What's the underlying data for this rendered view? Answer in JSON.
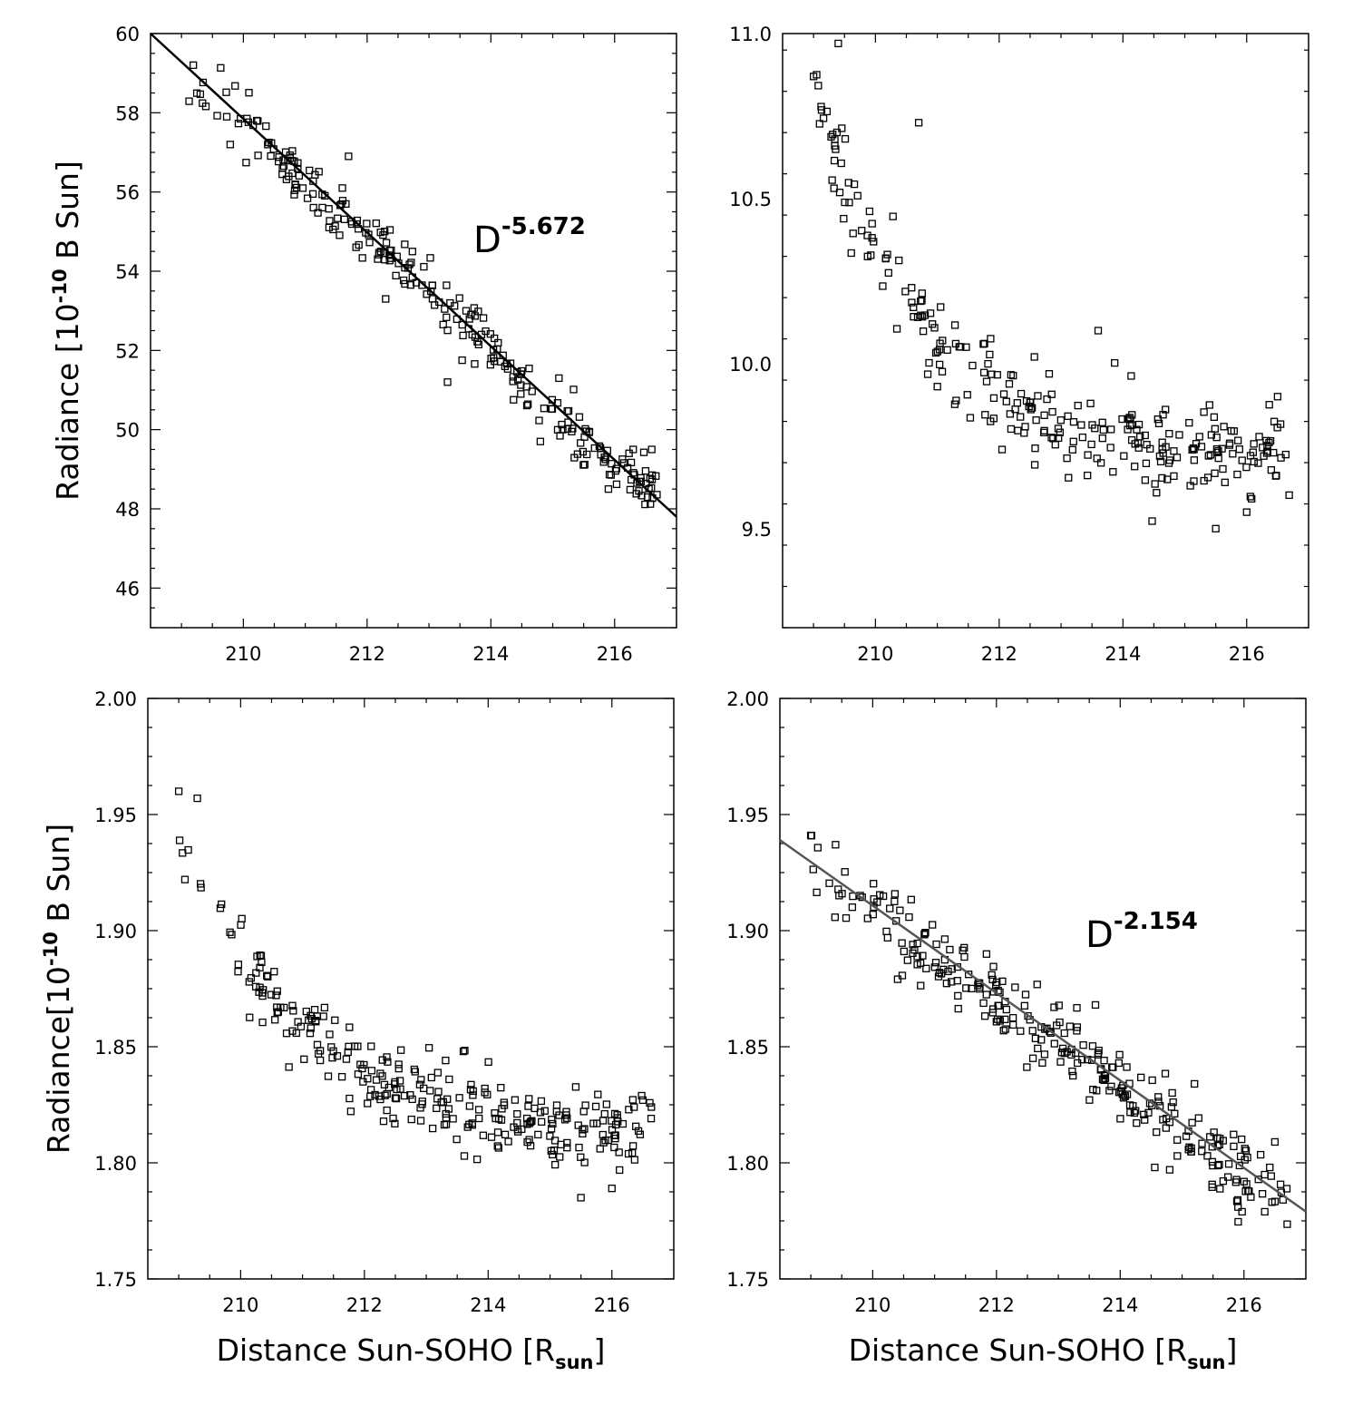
{
  "chart_data": [
    {
      "type": "scatter",
      "panel": "top-left",
      "xlim": [
        208.5,
        217
      ],
      "ylim": [
        45,
        60
      ],
      "xticks": [
        210,
        212,
        214,
        216
      ],
      "yticks": [
        46,
        48,
        50,
        52,
        54,
        56,
        58,
        60
      ],
      "ytick_labels": [
        "46",
        "48",
        "50",
        "52",
        "54",
        "56",
        "58",
        "60"
      ],
      "ylabel": {
        "before": "Radiance [10",
        "sup": "-10",
        "after": " B Sun]"
      },
      "xlabel": null,
      "fit": {
        "label": "D",
        "exponent": "-5.672",
        "x": [
          208.5,
          217
        ],
        "y": [
          60.0,
          47.8
        ],
        "color": "#000000"
      },
      "model": {
        "kind": "linear",
        "y0": 59.1,
        "slope": -1.42,
        "jitter": 0.35,
        "n": 260,
        "outliers": [
          [
            211.7,
            56.9
          ],
          [
            211.6,
            56.1
          ],
          [
            213.3,
            51.2
          ],
          [
            215.1,
            51.3
          ],
          [
            214.8,
            49.7
          ],
          [
            215.9,
            48.5
          ],
          [
            213.6,
            53.0
          ],
          [
            212.3,
            53.3
          ],
          [
            216.3,
            49.5
          ],
          [
            216.6,
            49.5
          ]
        ]
      }
    },
    {
      "type": "scatter",
      "panel": "top-right",
      "xlim": [
        208.5,
        217
      ],
      "ylim": [
        9.2,
        11.0
      ],
      "xticks": [
        210,
        212,
        214,
        216
      ],
      "yticks": [
        9.5,
        10.0,
        10.5,
        11.0
      ],
      "ytick_labels": [
        "9.5",
        "10.0",
        "10.5",
        "11.0"
      ],
      "ylabel": null,
      "xlabel": null,
      "fit": null,
      "model": {
        "kind": "decay",
        "a": 1.12,
        "b": 0.58,
        "c": 9.71,
        "jitter": 0.07,
        "n": 270,
        "outliers": [
          [
            209.4,
            10.97
          ],
          [
            210.7,
            10.73
          ],
          [
            213.6,
            10.1
          ],
          [
            215.5,
            9.5
          ],
          [
            216.5,
            9.9
          ],
          [
            216.0,
            9.55
          ],
          [
            209.0,
            10.87
          ]
        ]
      }
    },
    {
      "type": "scatter",
      "panel": "bottom-left",
      "xlim": [
        208.5,
        217
      ],
      "ylim": [
        1.75,
        2.0
      ],
      "xticks": [
        210,
        212,
        214,
        216
      ],
      "yticks": [
        1.75,
        1.8,
        1.85,
        1.9,
        1.95,
        2.0
      ],
      "ytick_labels": [
        "1.75",
        "1.80",
        "1.85",
        "1.90",
        "1.95",
        "2.00"
      ],
      "ylabel": {
        "before": "Radiance[10",
        "sup": "-10",
        "after": " B Sun]"
      },
      "xlabel": {
        "before": "Distance Sun-SOHO [R",
        "sub": "sun",
        "after": "]"
      },
      "fit": null,
      "model": {
        "kind": "decay",
        "a": 0.136,
        "b": 0.52,
        "c": 1.81,
        "jitter": 0.009,
        "n": 280,
        "outliers": [
          [
            209.0,
            1.96
          ],
          [
            209.3,
            1.957
          ],
          [
            215.5,
            1.785
          ],
          [
            216.0,
            1.789
          ],
          [
            216.5,
            1.827
          ],
          [
            213.6,
            1.848
          ],
          [
            209.1,
            1.922
          ]
        ]
      }
    },
    {
      "type": "scatter",
      "panel": "bottom-right",
      "xlim": [
        208.5,
        217
      ],
      "ylim": [
        1.75,
        2.0
      ],
      "xticks": [
        210,
        212,
        214,
        216
      ],
      "yticks": [
        1.75,
        1.8,
        1.85,
        1.9,
        1.95,
        2.0
      ],
      "ytick_labels": [
        "1.75",
        "1.80",
        "1.85",
        "1.90",
        "1.95",
        "2.00"
      ],
      "ylabel": null,
      "xlabel": {
        "before": "Distance Sun-SOHO [R",
        "sub": "sun",
        "after": "]"
      },
      "fit": {
        "label": "D",
        "exponent": "-2.154",
        "x": [
          208.5,
          217
        ],
        "y": [
          1.939,
          1.779
        ],
        "color": "#555555"
      },
      "model": {
        "kind": "linear",
        "y0": 1.928,
        "slope": -0.0188,
        "jitter": 0.008,
        "n": 280,
        "outliers": [
          [
            209.0,
            1.941
          ],
          [
            209.4,
            1.937
          ],
          [
            215.9,
            1.784
          ],
          [
            214.8,
            1.797
          ],
          [
            213.6,
            1.868
          ],
          [
            215.2,
            1.834
          ],
          [
            216.5,
            1.809
          ]
        ]
      }
    }
  ]
}
